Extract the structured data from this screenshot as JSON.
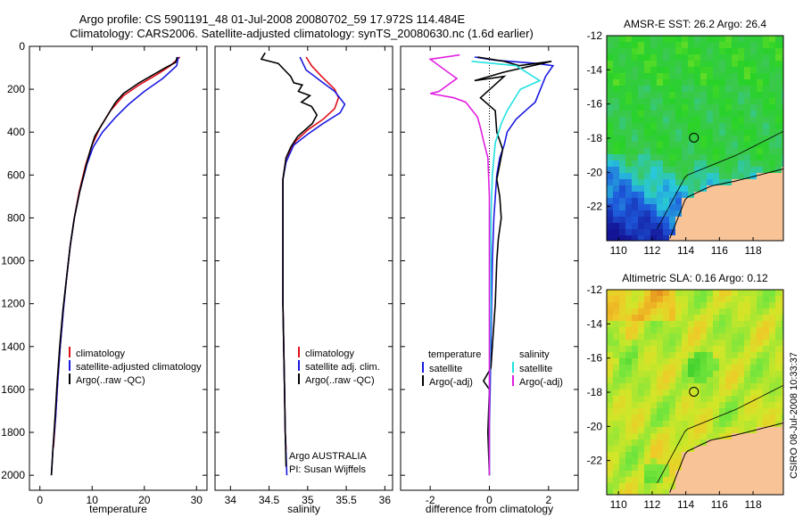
{
  "figure": {
    "title_line1": "Argo profile: CS 5901191_48 01-Jul-2008 20080702_59 17.972S 114.484E",
    "title_line2": "Climatology: CARS2006. Satellite-adjusted climatology: synTS_20080630.nc (1.6d earlier)",
    "credit": "CSIRO 08-Jul-2008 10:33:37",
    "pi_line1": "Argo AUSTRALIA",
    "pi_line2": "PI: Susan Wijffels"
  },
  "colors": {
    "red": "#e0101a",
    "blue": "#1a1ae0",
    "black": "#000000",
    "cyan": "#22e0e0",
    "magenta": "#e020e0",
    "land": "#f8c396",
    "marker": "#000000"
  },
  "chart_data": [
    {
      "id": "temperature",
      "type": "line",
      "xlabel": "temperature",
      "xlim": [
        -2,
        32
      ],
      "ylim": [
        0,
        2070
      ],
      "y_inverted": true,
      "xticks": [
        0,
        10,
        20,
        30
      ],
      "yticks": [
        0,
        200,
        400,
        600,
        800,
        1000,
        1200,
        1400,
        1600,
        1800,
        2000
      ],
      "legend_position": "lower-left",
      "series": [
        {
          "name": "climatology",
          "color": "red",
          "points": [
            [
              26.8,
              50
            ],
            [
              25,
              90
            ],
            [
              22.5,
              130
            ],
            [
              19,
              180
            ],
            [
              16,
              230
            ],
            [
              13.5,
              300
            ],
            [
              11.5,
              380
            ],
            [
              10,
              460
            ],
            [
              8.8,
              550
            ],
            [
              7.5,
              680
            ],
            [
              6.6,
              800
            ],
            [
              5.8,
              930
            ],
            [
              5.1,
              1080
            ],
            [
              4.5,
              1230
            ],
            [
              3.9,
              1400
            ],
            [
              3.4,
              1570
            ],
            [
              3,
              1730
            ],
            [
              2.6,
              1870
            ]
          ]
        },
        {
          "name": "satellite-adjusted climatology",
          "color": "blue",
          "points": [
            [
              26.5,
              50
            ],
            [
              26.2,
              90
            ],
            [
              23.5,
              150
            ],
            [
              20,
              210
            ],
            [
              17,
              270
            ],
            [
              14.5,
              330
            ],
            [
              12,
              400
            ],
            [
              10.2,
              470
            ],
            [
              9,
              550
            ],
            [
              7.6,
              680
            ],
            [
              6.6,
              800
            ],
            [
              5.8,
              930
            ],
            [
              5.1,
              1080
            ],
            [
              4.5,
              1230
            ],
            [
              3.9,
              1400
            ],
            [
              3.4,
              1570
            ],
            [
              3,
              1730
            ],
            [
              2.5,
              1880
            ],
            [
              2.2,
              2000
            ]
          ]
        },
        {
          "name": "Argo(..raw -QC)",
          "color": "black",
          "points": [
            [
              26.3,
              50
            ],
            [
              26,
              75
            ],
            [
              24,
              100
            ],
            [
              19,
              170
            ],
            [
              16,
              220
            ],
            [
              14.5,
              260
            ],
            [
              13,
              320
            ],
            [
              11.5,
              380
            ],
            [
              10.5,
              420
            ],
            [
              9.7,
              480
            ],
            [
              8.8,
              560
            ],
            [
              7.6,
              680
            ],
            [
              6.6,
              800
            ],
            [
              5.8,
              930
            ],
            [
              5.1,
              1080
            ],
            [
              4.4,
              1230
            ],
            [
              3.8,
              1400
            ],
            [
              3.3,
              1570
            ],
            [
              2.9,
              1730
            ],
            [
              2.5,
              1880
            ],
            [
              2.2,
              2000
            ]
          ]
        }
      ]
    },
    {
      "id": "salinity",
      "type": "line",
      "xlabel": "salinity",
      "xlim": [
        33.8,
        36.1
      ],
      "ylim": [
        0,
        2070
      ],
      "y_inverted": true,
      "xticks": [
        34,
        34.5,
        35,
        35.5,
        36
      ],
      "xtick_labels": [
        "34",
        "34.5",
        "35",
        "35.5",
        "36"
      ],
      "legend_position": "lower-right",
      "series": [
        {
          "name": "climatology",
          "color": "red",
          "points": [
            [
              34.98,
              50
            ],
            [
              35.05,
              90
            ],
            [
              35.18,
              140
            ],
            [
              35.35,
              200
            ],
            [
              35.4,
              240
            ],
            [
              35.35,
              290
            ],
            [
              35.2,
              340
            ],
            [
              35.0,
              390
            ],
            [
              34.85,
              440
            ],
            [
              34.72,
              520
            ],
            [
              34.68,
              620
            ],
            [
              34.68,
              800
            ],
            [
              34.68,
              1000
            ],
            [
              34.68,
              1200
            ],
            [
              34.69,
              1400
            ],
            [
              34.7,
              1600
            ],
            [
              34.71,
              1800
            ],
            [
              34.72,
              1880
            ]
          ]
        },
        {
          "name": "satellite adj. clim.",
          "color": "blue",
          "points": [
            [
              34.9,
              50
            ],
            [
              34.98,
              110
            ],
            [
              35.2,
              170
            ],
            [
              35.35,
              210
            ],
            [
              35.48,
              270
            ],
            [
              35.42,
              310
            ],
            [
              35.2,
              360
            ],
            [
              35.0,
              410
            ],
            [
              34.82,
              460
            ],
            [
              34.72,
              540
            ],
            [
              34.68,
              620
            ],
            [
              34.68,
              800
            ],
            [
              34.68,
              1000
            ],
            [
              34.68,
              1200
            ],
            [
              34.69,
              1400
            ],
            [
              34.7,
              1600
            ],
            [
              34.71,
              1800
            ],
            [
              34.73,
              2000
            ]
          ]
        },
        {
          "name": "Argo(..raw -QC)",
          "color": "black",
          "points": [
            [
              34.45,
              30
            ],
            [
              34.4,
              60
            ],
            [
              34.62,
              80
            ],
            [
              34.7,
              110
            ],
            [
              34.78,
              140
            ],
            [
              34.82,
              170
            ],
            [
              34.93,
              180
            ],
            [
              34.88,
              210
            ],
            [
              35.03,
              230
            ],
            [
              34.92,
              260
            ],
            [
              35.05,
              280
            ],
            [
              35.12,
              320
            ],
            [
              35.06,
              360
            ],
            [
              34.87,
              420
            ],
            [
              34.78,
              470
            ],
            [
              34.72,
              520
            ],
            [
              34.68,
              620
            ],
            [
              34.68,
              800
            ],
            [
              34.68,
              1000
            ],
            [
              34.68,
              1200
            ],
            [
              34.69,
              1400
            ],
            [
              34.7,
              1600
            ],
            [
              34.71,
              1800
            ],
            [
              34.72,
              1960
            ]
          ]
        }
      ]
    },
    {
      "id": "difference",
      "type": "line",
      "xlabel": "difference from climatology",
      "xlim": [
        -3,
        3
      ],
      "ylim": [
        0,
        2070
      ],
      "y_inverted": true,
      "xticks": [
        -2,
        0,
        2
      ],
      "zero_line": true,
      "legend_position": "lower-center",
      "legend_titles": [
        "temperature",
        "salinity"
      ],
      "series": [
        {
          "name": "satellite",
          "group": "temperature",
          "color": "blue",
          "points": [
            [
              -0.5,
              50
            ],
            [
              0.2,
              65
            ],
            [
              1.6,
              80
            ],
            [
              2.15,
              90
            ],
            [
              1.9,
              140
            ],
            [
              1.55,
              260
            ],
            [
              1.3,
              290
            ],
            [
              0.9,
              340
            ],
            [
              0.6,
              400
            ],
            [
              0.5,
              460
            ],
            [
              0.35,
              520
            ],
            [
              0.25,
              600
            ],
            [
              0.15,
              800
            ],
            [
              0.1,
              1000
            ],
            [
              0.05,
              1400
            ],
            [
              0.0,
              1800
            ],
            [
              0.0,
              2000
            ]
          ]
        },
        {
          "name": "Argo(-adj)",
          "group": "temperature",
          "color": "black",
          "points": [
            [
              -0.4,
              50
            ],
            [
              0.5,
              70
            ],
            [
              1.0,
              90
            ],
            [
              2.1,
              70
            ],
            [
              0.5,
              120
            ],
            [
              -0.5,
              160
            ],
            [
              0.5,
              140
            ],
            [
              -0.3,
              240
            ],
            [
              0.2,
              300
            ],
            [
              0.25,
              400
            ],
            [
              0.45,
              480
            ],
            [
              0.35,
              550
            ],
            [
              0.25,
              620
            ],
            [
              0.35,
              700
            ],
            [
              0.4,
              800
            ],
            [
              0.3,
              900
            ],
            [
              0.25,
              1000
            ],
            [
              0.2,
              1200
            ],
            [
              0.1,
              1400
            ],
            [
              0.05,
              1500
            ],
            [
              -0.2,
              1560
            ],
            [
              0.0,
              1600
            ],
            [
              -0.05,
              1800
            ],
            [
              0.0,
              2000
            ]
          ]
        },
        {
          "name": "satellite",
          "group": "salinity",
          "color": "cyan",
          "points": [
            [
              -0.6,
              70
            ],
            [
              0.9,
              90
            ],
            [
              1.7,
              160
            ],
            [
              1.05,
              200
            ],
            [
              0.6,
              300
            ],
            [
              0.4,
              360
            ],
            [
              0.2,
              450
            ],
            [
              0.1,
              600
            ],
            [
              0.05,
              800
            ],
            [
              0.05,
              1200
            ],
            [
              0.0,
              1600
            ],
            [
              0.0,
              1800
            ],
            [
              0.0,
              2000
            ]
          ]
        },
        {
          "name": "Argo(-adj)",
          "group": "salinity",
          "color": "magenta",
          "points": [
            [
              -1.0,
              40
            ],
            [
              -2.0,
              60
            ],
            [
              -1.6,
              100
            ],
            [
              -1.1,
              150
            ],
            [
              -1.7,
              210
            ],
            [
              -2.0,
              220
            ],
            [
              -1.2,
              240
            ],
            [
              -0.8,
              260
            ],
            [
              -0.4,
              330
            ],
            [
              -0.3,
              380
            ],
            [
              -0.2,
              440
            ],
            [
              -0.05,
              520
            ],
            [
              0.0,
              700
            ],
            [
              0.0,
              1200
            ],
            [
              0.0,
              1600
            ],
            [
              0.0,
              2000
            ]
          ]
        }
      ]
    },
    {
      "id": "sst_map",
      "type": "heatmap",
      "title": "AMSR-E SST: 26.2 Argo: 26.4",
      "xlim": [
        109.3,
        119.8
      ],
      "ylim": [
        -24,
        -12
      ],
      "xticks": [
        110,
        112,
        114,
        116,
        118
      ],
      "yticks": [
        -12,
        -14,
        -16,
        -18,
        -20,
        -22
      ],
      "argo_position": [
        114.484,
        -17.972
      ]
    },
    {
      "id": "sla_map",
      "type": "heatmap",
      "title": "Altimetric SLA: 0.16 Argo: 0.12",
      "xlim": [
        109.3,
        119.8
      ],
      "ylim": [
        -24,
        -12
      ],
      "xticks": [
        110,
        112,
        114,
        116,
        118
      ],
      "yticks": [
        -12,
        -14,
        -16,
        -18,
        -20,
        -22
      ],
      "argo_position": [
        114.484,
        -17.972
      ]
    }
  ]
}
